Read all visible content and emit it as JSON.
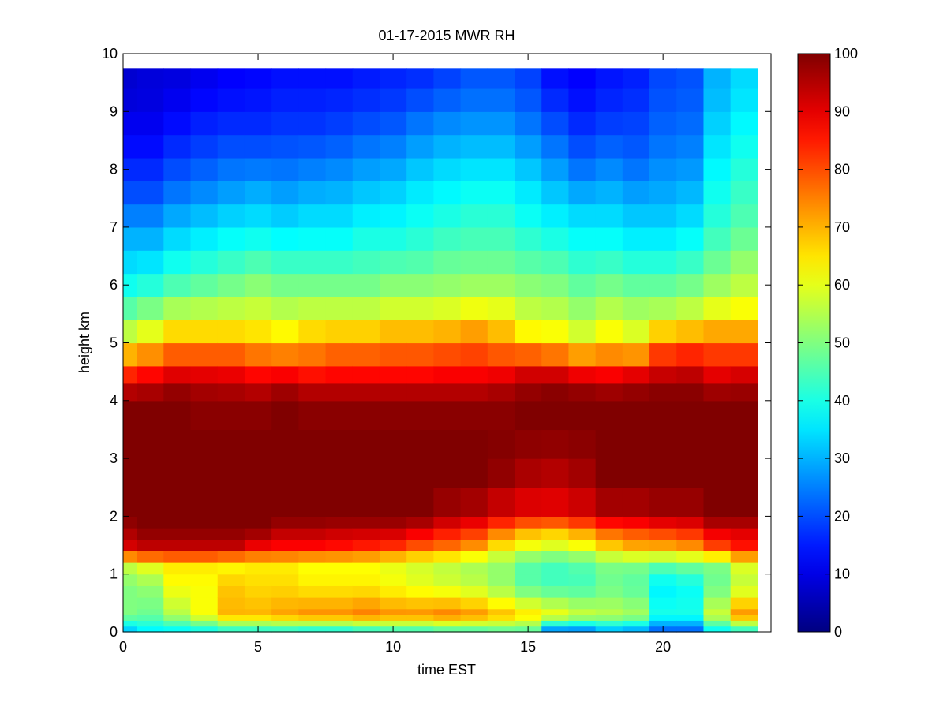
{
  "chart_data": {
    "type": "heatmap",
    "title": "01-17-2015 MWR RH",
    "xlabel": "time EST",
    "ylabel": "height km",
    "xlim": [
      0,
      24
    ],
    "ylim": [
      0,
      10
    ],
    "x_ticks": [
      0,
      5,
      10,
      15,
      20
    ],
    "y_ticks": [
      0,
      1,
      2,
      3,
      4,
      5,
      6,
      7,
      8,
      9,
      10
    ],
    "colormap": "jet",
    "clim": [
      0,
      100
    ],
    "colorbar_ticks": [
      0,
      10,
      20,
      30,
      40,
      50,
      60,
      70,
      80,
      90,
      100
    ],
    "x_centers": [
      0.25,
      1.0,
      2.0,
      3.0,
      4.0,
      5.0,
      6.0,
      7.0,
      8.0,
      9.0,
      10.0,
      11.0,
      12.0,
      13.0,
      14.0,
      15.0,
      16.0,
      17.0,
      18.0,
      19.0,
      20.0,
      21.0,
      22.0,
      23.0
    ],
    "x_edges": [
      0,
      0.5,
      1.5,
      2.5,
      3.5,
      4.5,
      5.5,
      6.5,
      7.5,
      8.5,
      9.5,
      10.5,
      11.5,
      12.5,
      13.5,
      14.5,
      15.5,
      16.5,
      17.5,
      18.5,
      19.5,
      20.5,
      21.5,
      22.5,
      23.5
    ],
    "height_levels_km": [
      0.0,
      0.1,
      0.2,
      0.3,
      0.4,
      0.6,
      0.8,
      1.0,
      1.2,
      1.4,
      1.6,
      1.8,
      2.0,
      2.5,
      3.0,
      3.5,
      4.0,
      4.3,
      4.6,
      5.0,
      5.4,
      5.8,
      6.2,
      6.6,
      7.0,
      7.4,
      7.8,
      8.2,
      8.6,
      9.0,
      9.4,
      9.75
    ],
    "profile_key_heights_km": [
      0.0,
      0.3,
      0.8,
      1.2,
      1.4,
      1.8,
      2.0,
      2.6,
      3.5,
      4.0,
      4.3,
      4.6,
      5.0,
      5.4,
      5.8,
      6.2,
      6.6,
      7.0,
      7.4,
      7.8,
      8.2,
      8.6,
      9.0,
      9.4,
      9.75
    ],
    "rh_profiles": [
      [
        30,
        50,
        50,
        58,
        90,
        97,
        100,
        100,
        100,
        100,
        90,
        78,
        62,
        50,
        42,
        36,
        32,
        28,
        22,
        18,
        15,
        12,
        10,
        8,
        8
      ],
      [
        35,
        48,
        52,
        62,
        92,
        100,
        100,
        100,
        100,
        100,
        92,
        82,
        65,
        55,
        44,
        38,
        32,
        28,
        22,
        18,
        15,
        12,
        10,
        9,
        9
      ],
      [
        35,
        55,
        62,
        65,
        92,
        100,
        100,
        100,
        100,
        100,
        96,
        85,
        72,
        60,
        48,
        42,
        36,
        32,
        26,
        22,
        18,
        15,
        12,
        10,
        9
      ],
      [
        36,
        62,
        62,
        65,
        92,
        100,
        100,
        100,
        100,
        98,
        95,
        85,
        72,
        60,
        50,
        44,
        38,
        34,
        28,
        24,
        20,
        17,
        14,
        12,
        10
      ],
      [
        38,
        70,
        68,
        62,
        92,
        100,
        100,
        100,
        100,
        98,
        94,
        85,
        72,
        60,
        52,
        46,
        40,
        36,
        30,
        26,
        22,
        18,
        15,
        13,
        12
      ],
      [
        38,
        70,
        66,
        64,
        86,
        100,
        100,
        100,
        100,
        98,
        92,
        82,
        70,
        60,
        54,
        48,
        42,
        36,
        32,
        27,
        22,
        18,
        15,
        14,
        12
      ],
      [
        38,
        72,
        66,
        64,
        85,
        96,
        100,
        100,
        100,
        100,
        94,
        82,
        68,
        58,
        52,
        46,
        40,
        35,
        30,
        26,
        22,
        19,
        16,
        15,
        13
      ],
      [
        36,
        74,
        64,
        62,
        85,
        96,
        100,
        100,
        100,
        98,
        92,
        80,
        72,
        60,
        52,
        46,
        40,
        36,
        32,
        27,
        23,
        19,
        16,
        15,
        13
      ],
      [
        36,
        74,
        64,
        62,
        84,
        95,
        100,
        100,
        100,
        98,
        92,
        82,
        74,
        60,
        52,
        46,
        40,
        36,
        32,
        28,
        24,
        20,
        17,
        15,
        13
      ],
      [
        38,
        76,
        64,
        62,
        82,
        95,
        100,
        100,
        100,
        98,
        92,
        82,
        74,
        60,
        52,
        46,
        42,
        38,
        34,
        30,
        26,
        22,
        18,
        16,
        14
      ],
      [
        40,
        74,
        62,
        60,
        80,
        95,
        100,
        100,
        100,
        98,
        92,
        82,
        76,
        62,
        54,
        48,
        42,
        38,
        35,
        31,
        27,
        23,
        19,
        17,
        15
      ],
      [
        40,
        74,
        60,
        58,
        76,
        92,
        100,
        100,
        100,
        98,
        92,
        82,
        76,
        62,
        54,
        48,
        43,
        40,
        37,
        34,
        30,
        26,
        22,
        18,
        16
      ],
      [
        42,
        76,
        58,
        56,
        74,
        88,
        96,
        100,
        100,
        98,
        92,
        84,
        76,
        64,
        54,
        50,
        45,
        42,
        38,
        36,
        32,
        28,
        24,
        20,
        18
      ],
      [
        42,
        74,
        56,
        54,
        70,
        85,
        94,
        100,
        100,
        98,
        92,
        84,
        78,
        66,
        56,
        50,
        46,
        43,
        40,
        37,
        33,
        29,
        25,
        22,
        20
      ],
      [
        44,
        70,
        52,
        52,
        62,
        78,
        90,
        98,
        100,
        98,
        94,
        84,
        74,
        64,
        56,
        50,
        46,
        43,
        40,
        37,
        33,
        29,
        25,
        22,
        20
      ],
      [
        44,
        66,
        46,
        46,
        58,
        72,
        88,
        95,
        100,
        100,
        96,
        88,
        68,
        58,
        54,
        48,
        44,
        40,
        37,
        34,
        30,
        26,
        22,
        20,
        18
      ],
      [
        22,
        62,
        44,
        44,
        56,
        70,
        88,
        94,
        100,
        100,
        98,
        86,
        66,
        58,
        52,
        48,
        42,
        38,
        34,
        30,
        26,
        22,
        18,
        15,
        13
      ],
      [
        22,
        58,
        44,
        46,
        58,
        74,
        90,
        96,
        100,
        100,
        96,
        82,
        62,
        54,
        50,
        44,
        40,
        36,
        32,
        26,
        22,
        18,
        15,
        13,
        12
      ],
      [
        28,
        56,
        48,
        50,
        64,
        80,
        94,
        100,
        100,
        100,
        94,
        82,
        66,
        58,
        52,
        46,
        40,
        36,
        32,
        28,
        24,
        20,
        17,
        15,
        14
      ],
      [
        26,
        54,
        46,
        50,
        68,
        82,
        94,
        100,
        100,
        100,
        96,
        84,
        62,
        56,
        50,
        44,
        38,
        34,
        30,
        26,
        22,
        20,
        18,
        16,
        15
      ],
      [
        20,
        40,
        36,
        48,
        68,
        84,
        96,
        100,
        100,
        100,
        98,
        88,
        76,
        58,
        50,
        44,
        38,
        34,
        30,
        28,
        25,
        23,
        21,
        20,
        19
      ],
      [
        20,
        40,
        38,
        50,
        70,
        86,
        96,
        100,
        100,
        100,
        98,
        90,
        78,
        60,
        52,
        46,
        40,
        36,
        32,
        29,
        26,
        24,
        22,
        21,
        20
      ],
      [
        35,
        58,
        48,
        50,
        78,
        92,
        100,
        100,
        100,
        100,
        94,
        86,
        78,
        64,
        56,
        50,
        46,
        42,
        40,
        38,
        36,
        34,
        32,
        30,
        30
      ],
      [
        38,
        74,
        56,
        60,
        84,
        92,
        100,
        100,
        100,
        100,
        95,
        88,
        76,
        66,
        58,
        54,
        50,
        46,
        44,
        42,
        40,
        38,
        36,
        34,
        34
      ]
    ]
  }
}
